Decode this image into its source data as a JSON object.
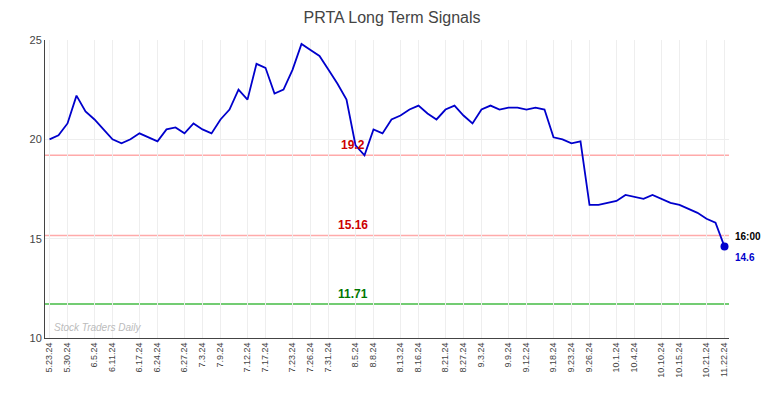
{
  "chart_data": {
    "type": "line",
    "title": "PRTA Long Term Signals",
    "categories": [
      "5.23.24",
      null,
      "5.30.24",
      null,
      null,
      "6.5.24",
      null,
      "6.11.24",
      null,
      null,
      "6.17.24",
      null,
      "6.24.24",
      null,
      null,
      "6.27.24",
      null,
      "7.3.24",
      null,
      "7.9.24",
      null,
      null,
      "7.12.24",
      null,
      "7.17.24",
      null,
      null,
      "7.23.24",
      null,
      "7.26.24",
      null,
      "7.31.24",
      null,
      null,
      "8.5.24",
      null,
      "8.8.24",
      null,
      null,
      "8.13.24",
      null,
      "8.16.24",
      null,
      null,
      "8.21.24",
      null,
      "8.27.24",
      null,
      "9.3.24",
      null,
      null,
      "9.9.24",
      null,
      "9.12.24",
      null,
      null,
      "9.18.24",
      null,
      "9.23.24",
      null,
      "9.26.24",
      null,
      null,
      "10.1.24",
      null,
      "10.4.24",
      null,
      null,
      "10.10.24",
      null,
      "10.15.24",
      null,
      null,
      "10.21.24",
      null,
      "11.22.24"
    ],
    "values": [
      20.0,
      20.2,
      20.8,
      22.2,
      21.4,
      21.0,
      20.5,
      20.0,
      19.8,
      20.0,
      20.3,
      20.1,
      19.9,
      20.5,
      20.6,
      20.3,
      20.8,
      20.5,
      20.3,
      21.0,
      21.5,
      22.5,
      22.0,
      23.8,
      23.6,
      22.3,
      22.5,
      23.5,
      24.8,
      24.5,
      24.2,
      23.5,
      22.8,
      22.0,
      19.7,
      19.2,
      20.5,
      20.3,
      21.0,
      21.2,
      21.5,
      21.7,
      21.3,
      21.0,
      21.5,
      21.7,
      21.2,
      20.8,
      21.5,
      21.7,
      21.5,
      21.6,
      21.6,
      21.5,
      21.6,
      21.5,
      20.1,
      20.0,
      19.8,
      19.9,
      16.7,
      16.7,
      16.8,
      16.9,
      17.2,
      17.1,
      17.0,
      17.2,
      17.0,
      16.8,
      16.7,
      16.5,
      16.3,
      16.0,
      15.8,
      14.6
    ],
    "color": "#0000cc",
    "hlines": [
      {
        "value": 19.2,
        "label": "19.2",
        "color": "#ffaaaa",
        "label_color": "#cc0000"
      },
      {
        "value": 15.16,
        "label": "15.16",
        "color": "#ffaaaa",
        "label_color": "#cc0000"
      },
      {
        "value": 11.71,
        "label": "11.71",
        "color": "#44bb44",
        "label_color": "#007700"
      }
    ],
    "end_label": "16:00",
    "end_value_label": "14.6",
    "watermark": "Stock Traders Daily",
    "watermark_color": "#bbbbbb",
    "ylim": [
      10,
      25
    ],
    "yticks": [
      10,
      15,
      20,
      25
    ],
    "grid": true
  }
}
